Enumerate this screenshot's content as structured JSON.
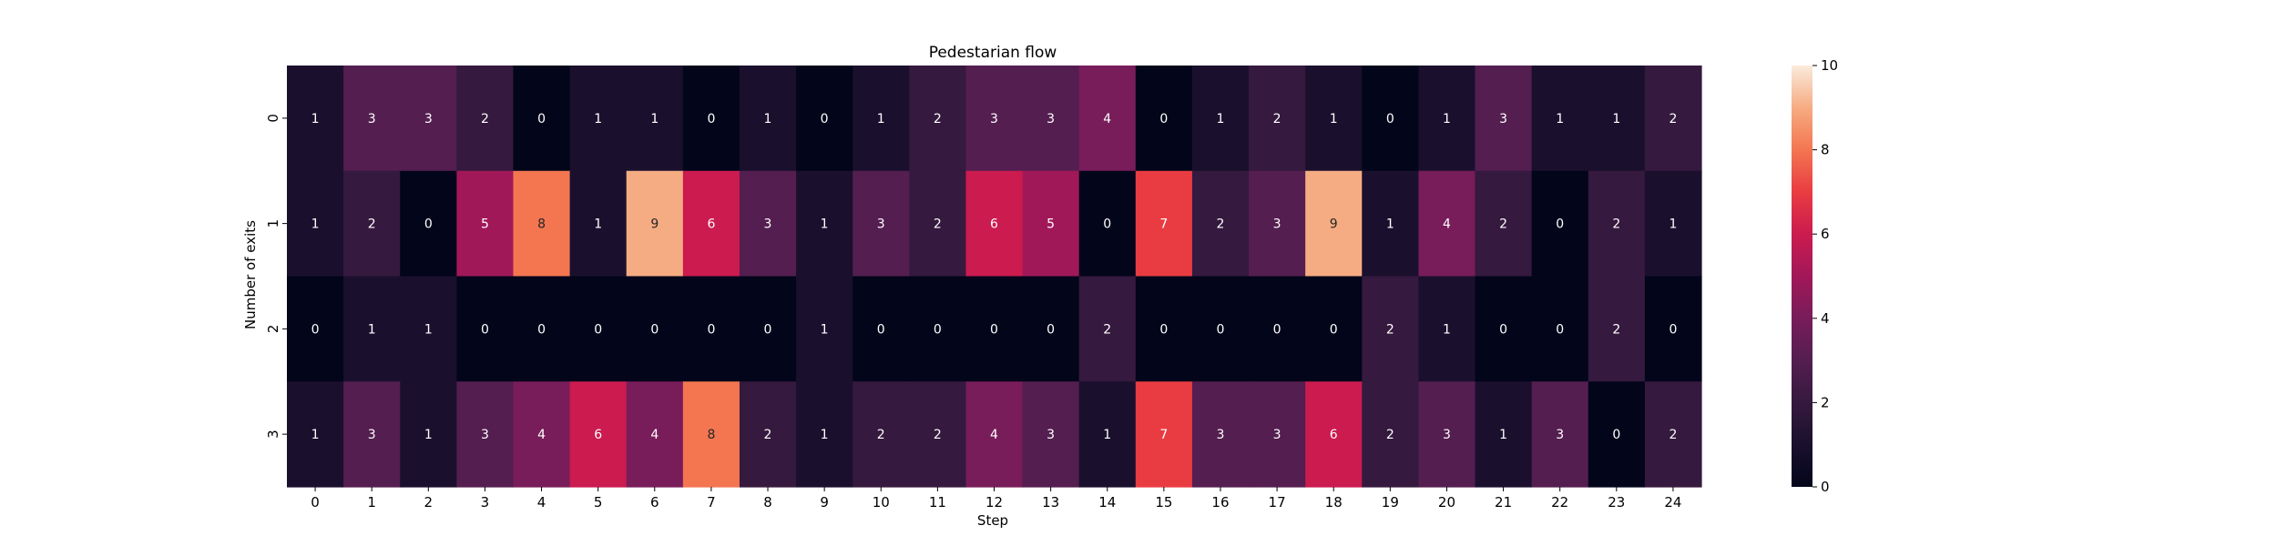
{
  "chart_data": {
    "type": "heatmap",
    "title": "Pedestarian flow",
    "xlabel": "Step",
    "ylabel": "Number of exits",
    "x": [
      "0",
      "1",
      "2",
      "3",
      "4",
      "5",
      "6",
      "7",
      "8",
      "9",
      "10",
      "11",
      "12",
      "13",
      "14",
      "15",
      "16",
      "17",
      "18",
      "19",
      "20",
      "21",
      "22",
      "23",
      "24"
    ],
    "y": [
      "0",
      "1",
      "2",
      "3"
    ],
    "values": [
      [
        1,
        3,
        3,
        2,
        0,
        1,
        1,
        0,
        1,
        0,
        1,
        2,
        3,
        3,
        4,
        0,
        1,
        2,
        1,
        0,
        1,
        3,
        1,
        1,
        2
      ],
      [
        1,
        2,
        0,
        5,
        8,
        1,
        9,
        6,
        3,
        1,
        3,
        2,
        6,
        5,
        0,
        7,
        2,
        3,
        9,
        1,
        4,
        2,
        0,
        2,
        1
      ],
      [
        0,
        1,
        1,
        0,
        0,
        0,
        0,
        0,
        0,
        1,
        0,
        0,
        0,
        0,
        2,
        0,
        0,
        0,
        0,
        2,
        1,
        0,
        0,
        2,
        0
      ],
      [
        1,
        3,
        1,
        3,
        4,
        6,
        4,
        8,
        2,
        1,
        2,
        2,
        4,
        3,
        1,
        7,
        3,
        3,
        6,
        2,
        3,
        1,
        3,
        0,
        2
      ]
    ],
    "zlim": [
      0,
      10
    ],
    "colorbar": {
      "ticks": [
        "0",
        "2",
        "4",
        "6",
        "8",
        "10"
      ]
    },
    "colormap": "rocket",
    "annotations": true,
    "grid": false
  }
}
